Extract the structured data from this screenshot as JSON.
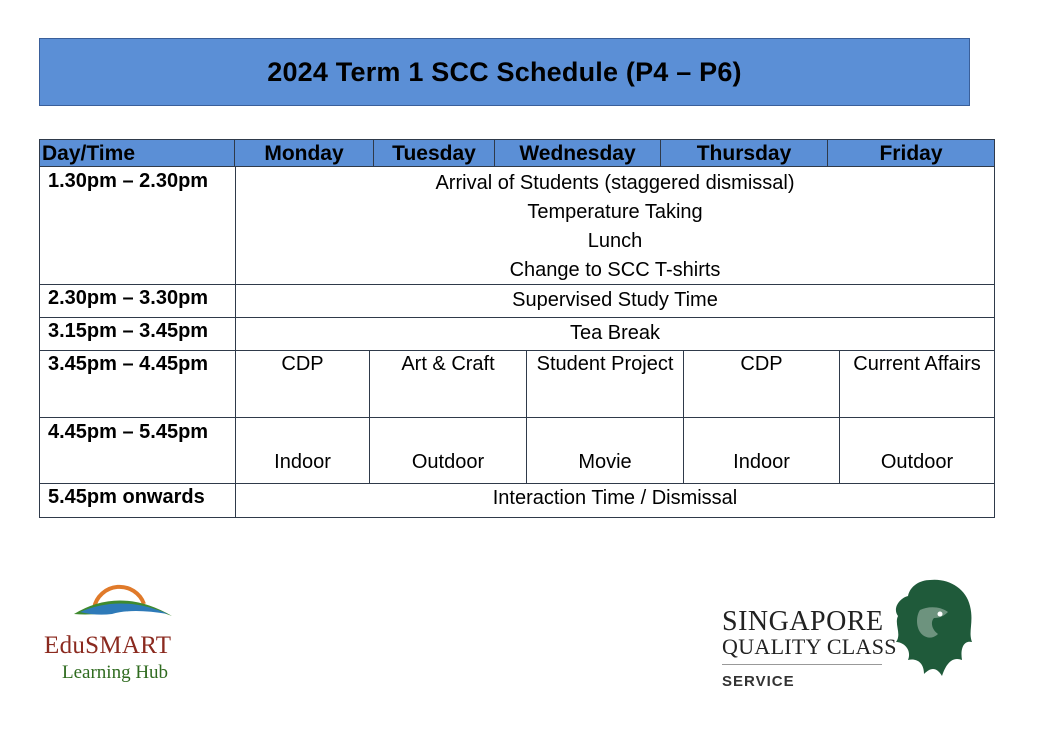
{
  "title": "2024 Term 1 SCC Schedule (P4 – P6)",
  "table": {
    "headers": [
      "Day/Time",
      "Monday",
      "Tuesday",
      "Wednesday",
      "Thursday",
      "Friday"
    ],
    "rows": {
      "r1": {
        "time": "1.30pm – 2.30pm",
        "lines": [
          "Arrival of Students (staggered dismissal)",
          "Temperature Taking",
          "Lunch",
          "Change to SCC T-shirts"
        ]
      },
      "r2": {
        "time": "2.30pm – 3.30pm",
        "text": "Supervised Study Time"
      },
      "r3": {
        "time": "3.15pm – 3.45pm",
        "text": "Tea Break"
      },
      "r4": {
        "time": "3.45pm – 4.45pm",
        "cells": [
          "CDP",
          "Art & Craft",
          "Student Project",
          "CDP",
          "Current Affairs"
        ]
      },
      "r5": {
        "time": "4.45pm – 5.45pm",
        "cells": [
          "Indoor",
          "Outdoor",
          "Movie",
          "Indoor",
          "Outdoor"
        ]
      },
      "r6": {
        "time": "5.45pm onwards",
        "text": "Interaction Time / Dismissal"
      }
    }
  },
  "logos": {
    "edusmart": {
      "name": "EduSMART",
      "subtitle": "Learning Hub"
    },
    "sqc": {
      "line1": "SINGAPORE",
      "line2": "QUALITY CLASS",
      "line3": "SERVICE"
    }
  },
  "colors": {
    "banner": "#5b8fd6",
    "edusmart_red": "#8b2a1f",
    "edusmart_green": "#2f6b1f",
    "lion_green": "#1f5a3a"
  }
}
